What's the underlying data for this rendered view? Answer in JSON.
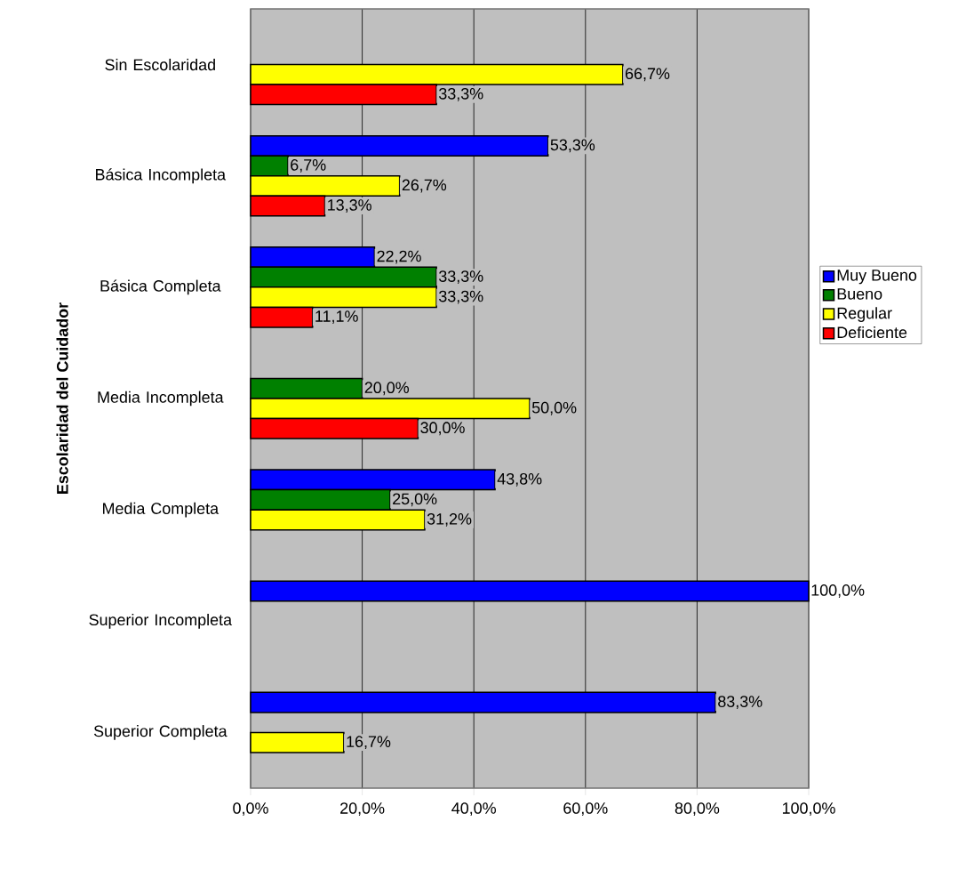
{
  "chart_data": {
    "type": "bar",
    "orientation": "horizontal",
    "ylabel": "Escolaridad del Cuidador",
    "categories": [
      "Sin Escolaridad",
      "Básica Incompleta",
      "Básica Completa",
      "Media Incompleta",
      "Media Completa",
      "Superior Incompleta",
      "Superior Completa"
    ],
    "series": [
      {
        "name": "Muy Bueno",
        "color": "#0000ff",
        "values": [
          null,
          53.3,
          22.2,
          null,
          43.8,
          100.0,
          83.3
        ],
        "value_labels": [
          null,
          "53,3%",
          "22,2%",
          null,
          "43,8%",
          "100,0%",
          "83,3%"
        ]
      },
      {
        "name": "Bueno",
        "color": "#008000",
        "values": [
          null,
          6.7,
          33.3,
          20.0,
          25.0,
          null,
          null
        ],
        "value_labels": [
          null,
          "6,7%",
          "33,3%",
          "20,0%",
          "25,0%",
          null,
          null
        ]
      },
      {
        "name": "Regular",
        "color": "#ffff00",
        "values": [
          66.7,
          26.7,
          33.3,
          50.0,
          31.2,
          null,
          16.7
        ],
        "value_labels": [
          "66,7%",
          "26,7%",
          "33,3%",
          "50,0%",
          "31,2%",
          null,
          "16,7%"
        ]
      },
      {
        "name": "Deficiente",
        "color": "#ff0000",
        "values": [
          33.3,
          13.3,
          11.1,
          30.0,
          null,
          null,
          null
        ],
        "value_labels": [
          "33,3%",
          "13,3%",
          "11,1%",
          "30,0%",
          null,
          null,
          null
        ]
      }
    ],
    "xlim": [
      0,
      100
    ],
    "xticks": [
      {
        "value": 0,
        "label": "0,0%"
      },
      {
        "value": 20,
        "label": "20,0%"
      },
      {
        "value": 40,
        "label": "40,0%"
      },
      {
        "value": 60,
        "label": "60,0%"
      },
      {
        "value": 80,
        "label": "80,0%"
      },
      {
        "value": 100,
        "label": "100,0%"
      }
    ],
    "grid": "x",
    "legend": "right"
  }
}
